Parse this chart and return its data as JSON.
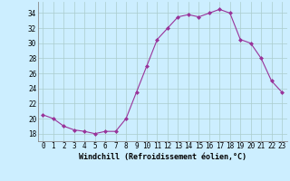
{
  "x": [
    0,
    1,
    2,
    3,
    4,
    5,
    6,
    7,
    8,
    9,
    10,
    11,
    12,
    13,
    14,
    15,
    16,
    17,
    18,
    19,
    20,
    21,
    22,
    23
  ],
  "y": [
    20.5,
    20.0,
    19.0,
    18.5,
    18.3,
    18.0,
    18.3,
    18.3,
    20.0,
    23.5,
    27.0,
    30.5,
    32.0,
    33.5,
    33.8,
    33.5,
    34.0,
    34.5,
    34.0,
    30.5,
    30.0,
    28.0,
    25.0,
    23.5
  ],
  "line_color": "#993399",
  "marker": "D",
  "marker_size": 2.0,
  "bg_color": "#cceeff",
  "grid_color": "#aacccc",
  "xlabel": "Windchill (Refroidissement éolien,°C)",
  "xlabel_fontsize": 6.0,
  "tick_fontsize": 5.5,
  "ytick_labels": [
    "18",
    "20",
    "22",
    "24",
    "26",
    "28",
    "30",
    "32",
    "34"
  ],
  "ytick_values": [
    18,
    20,
    22,
    24,
    26,
    28,
    30,
    32,
    34
  ],
  "ylim": [
    17.0,
    35.5
  ],
  "xlim": [
    -0.5,
    23.5
  ]
}
